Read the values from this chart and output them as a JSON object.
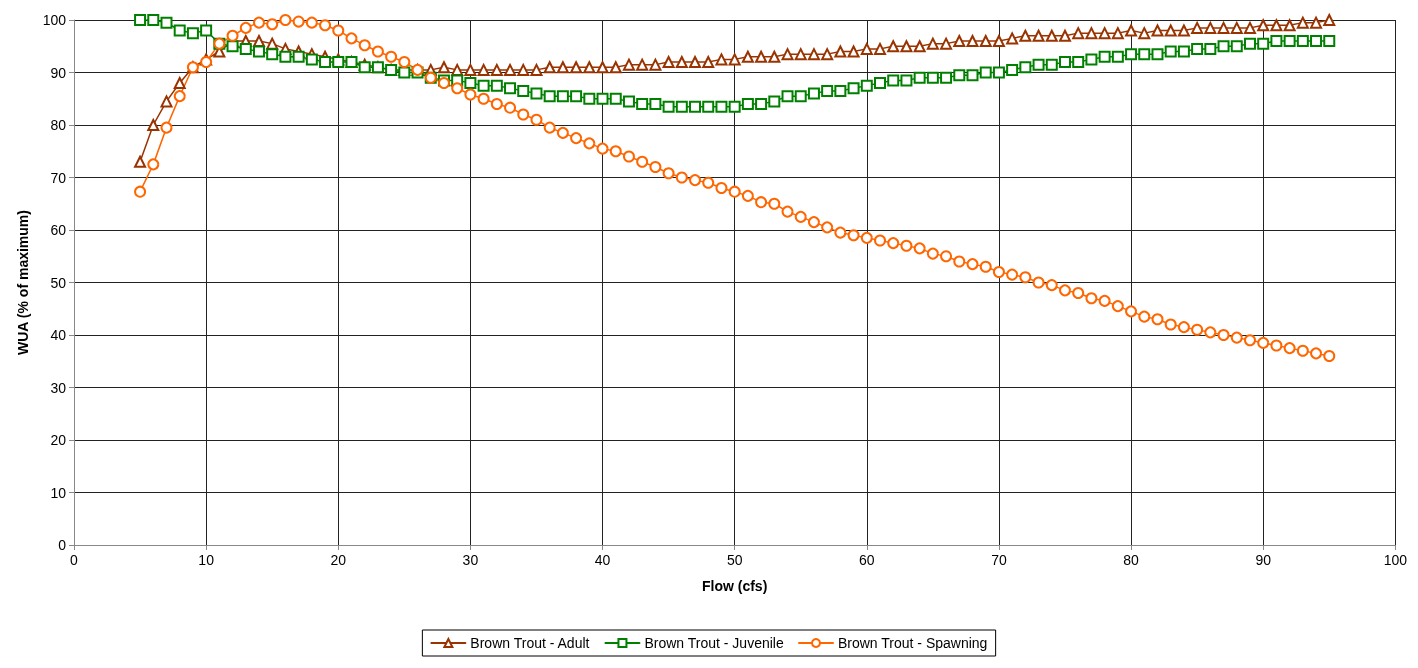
{
  "chart_data": {
    "type": "line",
    "xlabel": "Flow (cfs)",
    "ylabel": "WUA (% of maximum)",
    "x": [
      5,
      6,
      7,
      8,
      9,
      10,
      11,
      12,
      13,
      14,
      15,
      16,
      17,
      18,
      19,
      20,
      21,
      22,
      23,
      24,
      25,
      26,
      27,
      28,
      29,
      30,
      31,
      32,
      33,
      34,
      35,
      36,
      37,
      38,
      39,
      40,
      41,
      42,
      43,
      44,
      45,
      46,
      47,
      48,
      49,
      50,
      51,
      52,
      53,
      54,
      55,
      56,
      57,
      58,
      59,
      60,
      61,
      62,
      63,
      64,
      65,
      66,
      67,
      68,
      69,
      70,
      71,
      72,
      73,
      74,
      75,
      76,
      77,
      78,
      79,
      80,
      81,
      82,
      83,
      84,
      85,
      86,
      87,
      88,
      89,
      90,
      91,
      92,
      93,
      94,
      95
    ],
    "series": [
      {
        "name": "Brown Trout - Adult",
        "color": "#993300",
        "marker": "triangle",
        "values": [
          73,
          80,
          84.5,
          88,
          91,
          92.5,
          94,
          96,
          96,
          96,
          95.5,
          94.5,
          94,
          93.5,
          93,
          92.5,
          92,
          91.5,
          91,
          90.5,
          90.5,
          90.5,
          90.5,
          91,
          90.5,
          90.5,
          90.5,
          90.5,
          90.5,
          90.5,
          90.5,
          91,
          91,
          91,
          91,
          91,
          91,
          91.5,
          91.5,
          91.5,
          92,
          92,
          92,
          92,
          92.5,
          92.5,
          93,
          93,
          93,
          93.5,
          93.5,
          93.5,
          93.5,
          94,
          94,
          94.5,
          94.5,
          95,
          95,
          95,
          95.5,
          95.5,
          96,
          96,
          96,
          96,
          96.5,
          97,
          97,
          97,
          97,
          97.5,
          97.5,
          97.5,
          97.5,
          98,
          97.5,
          98,
          98,
          98,
          98.5,
          98.5,
          98.5,
          98.5,
          98.5,
          99,
          99,
          99,
          99.5,
          99.5,
          100
        ]
      },
      {
        "name": "Brown Trout - Juvenile",
        "color": "#008000",
        "marker": "square",
        "values": [
          100,
          100,
          99.5,
          98,
          97.5,
          98,
          95.5,
          95,
          94.5,
          94,
          93.5,
          93,
          93,
          92.5,
          92,
          92,
          92,
          91,
          91,
          90.5,
          90,
          90,
          89,
          88.5,
          88.5,
          88,
          87.5,
          87.5,
          87,
          86.5,
          86,
          85.5,
          85.5,
          85.5,
          85,
          85,
          85,
          84.5,
          84,
          84,
          83.5,
          83.5,
          83.5,
          83.5,
          83.5,
          83.5,
          84,
          84,
          84.5,
          85.5,
          85.5,
          86,
          86.5,
          86.5,
          87,
          87.5,
          88,
          88.5,
          88.5,
          89,
          89,
          89,
          89.5,
          89.5,
          90,
          90,
          90.5,
          91,
          91.5,
          91.5,
          92,
          92,
          92.5,
          93,
          93,
          93.5,
          93.5,
          93.5,
          94,
          94,
          94.5,
          94.5,
          95,
          95,
          95.5,
          95.5,
          96,
          96,
          96,
          96,
          96
        ]
      },
      {
        "name": "Brown Trout - Spawning",
        "color": "#ff6600",
        "marker": "circle",
        "values": [
          67.3,
          72.5,
          79.5,
          85.5,
          91,
          92,
          95.5,
          97,
          98.5,
          99.5,
          99.2,
          100,
          99.7,
          99.5,
          99,
          98,
          96.5,
          95.2,
          94,
          93,
          92,
          90.5,
          89,
          88,
          87,
          85.8,
          85,
          84,
          83.3,
          82,
          81,
          79.5,
          78.5,
          77.5,
          76.5,
          75.5,
          75,
          74,
          73,
          72,
          70.8,
          70,
          69.5,
          69,
          68,
          67.3,
          66.5,
          65.3,
          65,
          63.5,
          62.5,
          61.5,
          60.5,
          59.5,
          59,
          58.5,
          58,
          57.5,
          57,
          56.5,
          55.5,
          55,
          54,
          53.5,
          53,
          52,
          51.5,
          51,
          50,
          49.5,
          48.5,
          48,
          47,
          46.5,
          45.5,
          44.5,
          43.5,
          43,
          42,
          41.5,
          41,
          40.5,
          40,
          39.5,
          39,
          38.5,
          38,
          37.5,
          37,
          36.5,
          36
        ]
      }
    ],
    "xlim": [
      0,
      100
    ],
    "xticks": [
      0,
      10,
      20,
      30,
      40,
      50,
      60,
      70,
      80,
      90,
      100
    ],
    "ylim": [
      0,
      100
    ],
    "yticks": [
      0,
      10,
      20,
      30,
      40,
      50,
      60,
      70,
      80,
      90,
      100
    ],
    "grid": true,
    "legend": "bottom",
    "line_style": "solid"
  }
}
